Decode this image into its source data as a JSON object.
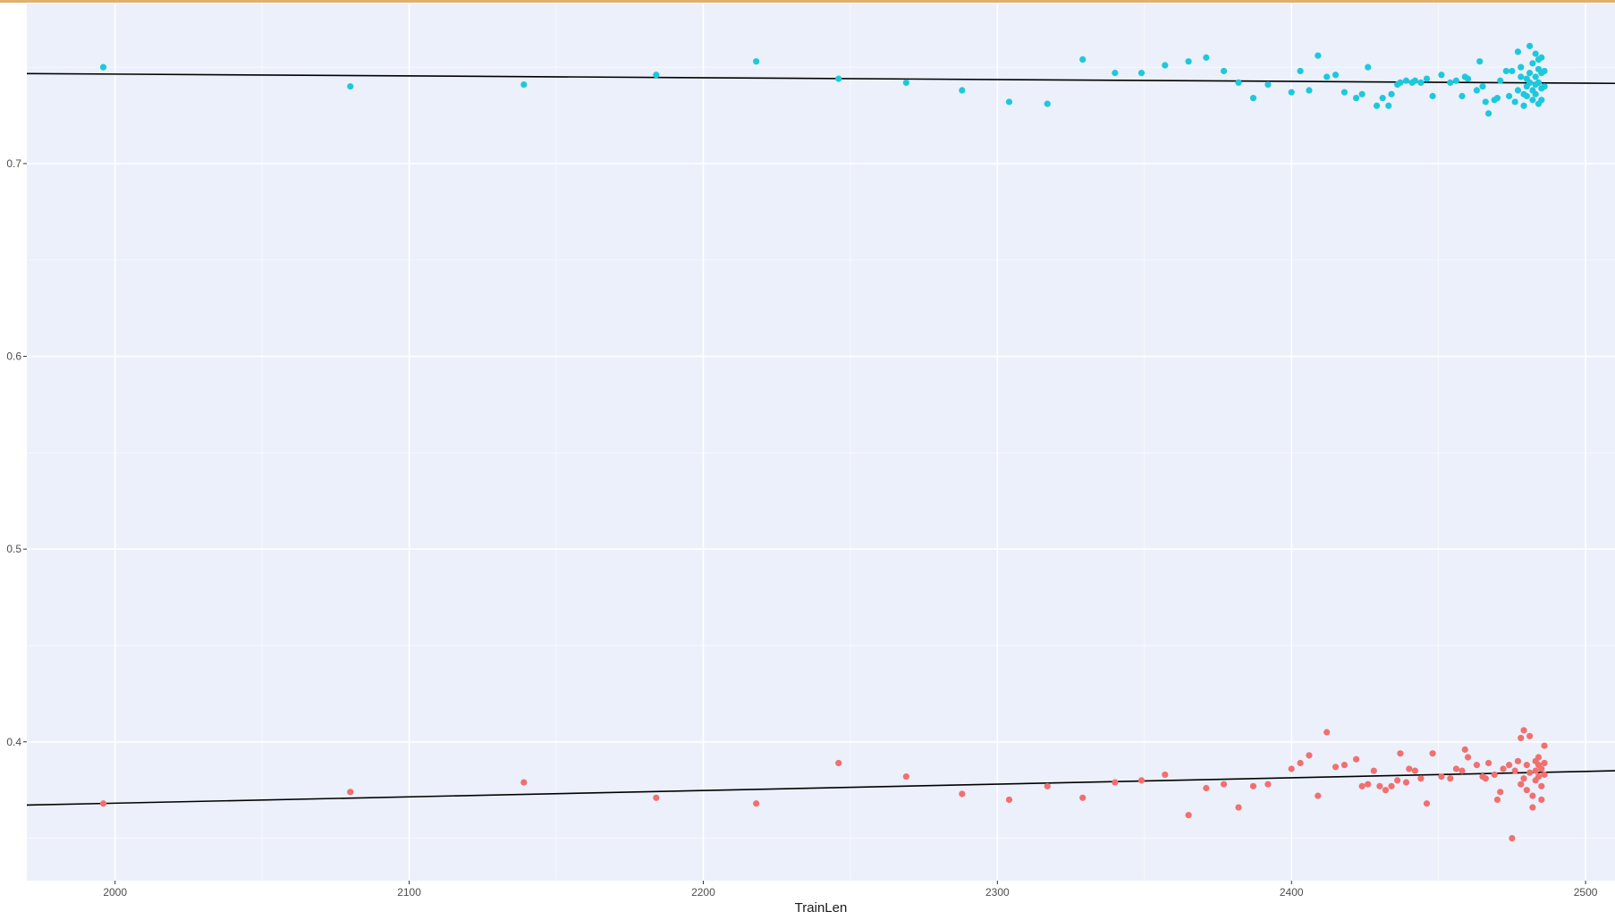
{
  "chart_data": {
    "type": "scatter",
    "title": "",
    "xlabel": "TrainLen",
    "ylabel": "",
    "xlim": [
      1970,
      2510
    ],
    "ylim": [
      0.328,
      0.783
    ],
    "x_ticks": [
      2000,
      2100,
      2200,
      2300,
      2400,
      2500
    ],
    "y_ticks": [
      0.4,
      0.5,
      0.6,
      0.7
    ],
    "grid": true,
    "legend": "none",
    "colors": {
      "background": "#ebf0fa",
      "grid": "#ffffff",
      "trend": "#000000",
      "series_upper": "#1ec8dc",
      "series_lower": "#f07070"
    },
    "series": [
      {
        "color": "#1ec8dc",
        "points": [
          [
            1996,
            0.75
          ],
          [
            2080,
            0.74
          ],
          [
            2139,
            0.741
          ],
          [
            2184,
            0.746
          ],
          [
            2218,
            0.753
          ],
          [
            2246,
            0.744
          ],
          [
            2269,
            0.742
          ],
          [
            2288,
            0.738
          ],
          [
            2304,
            0.732
          ],
          [
            2317,
            0.731
          ],
          [
            2329,
            0.754
          ],
          [
            2340,
            0.747
          ],
          [
            2349,
            0.747
          ],
          [
            2357,
            0.751
          ],
          [
            2365,
            0.753
          ],
          [
            2371,
            0.755
          ],
          [
            2377,
            0.748
          ],
          [
            2382,
            0.742
          ],
          [
            2387,
            0.734
          ],
          [
            2392,
            0.741
          ],
          [
            2400,
            0.737
          ],
          [
            2403,
            0.748
          ],
          [
            2406,
            0.738
          ],
          [
            2409,
            0.756
          ],
          [
            2412,
            0.745
          ],
          [
            2415,
            0.746
          ],
          [
            2418,
            0.737
          ],
          [
            2422,
            0.734
          ],
          [
            2424,
            0.736
          ],
          [
            2426,
            0.75
          ],
          [
            2429,
            0.73
          ],
          [
            2431,
            0.734
          ],
          [
            2433,
            0.73
          ],
          [
            2434,
            0.736
          ],
          [
            2436,
            0.741
          ],
          [
            2437,
            0.742
          ],
          [
            2439,
            0.743
          ],
          [
            2441,
            0.742
          ],
          [
            2442,
            0.743
          ],
          [
            2444,
            0.742
          ],
          [
            2446,
            0.744
          ],
          [
            2448,
            0.735
          ],
          [
            2451,
            0.746
          ],
          [
            2454,
            0.742
          ],
          [
            2456,
            0.743
          ],
          [
            2458,
            0.735
          ],
          [
            2459,
            0.745
          ],
          [
            2460,
            0.744
          ],
          [
            2463,
            0.738
          ],
          [
            2464,
            0.753
          ],
          [
            2465,
            0.74
          ],
          [
            2466,
            0.732
          ],
          [
            2467,
            0.726
          ],
          [
            2469,
            0.733
          ],
          [
            2470,
            0.734
          ],
          [
            2471,
            0.743
          ],
          [
            2473,
            0.748
          ],
          [
            2474,
            0.735
          ],
          [
            2475,
            0.748
          ],
          [
            2476,
            0.732
          ],
          [
            2477,
            0.758
          ],
          [
            2477,
            0.738
          ],
          [
            2478,
            0.745
          ],
          [
            2478,
            0.75
          ],
          [
            2479,
            0.736
          ],
          [
            2479,
            0.73
          ],
          [
            2480,
            0.744
          ],
          [
            2480,
            0.74
          ],
          [
            2480,
            0.735
          ],
          [
            2481,
            0.747
          ],
          [
            2481,
            0.761
          ],
          [
            2481,
            0.742
          ],
          [
            2482,
            0.738
          ],
          [
            2482,
            0.733
          ],
          [
            2482,
            0.752
          ],
          [
            2483,
            0.757
          ],
          [
            2483,
            0.745
          ],
          [
            2483,
            0.741
          ],
          [
            2483,
            0.736
          ],
          [
            2484,
            0.754
          ],
          [
            2484,
            0.749
          ],
          [
            2484,
            0.742
          ],
          [
            2484,
            0.731
          ],
          [
            2485,
            0.755
          ],
          [
            2485,
            0.747
          ],
          [
            2485,
            0.739
          ],
          [
            2485,
            0.733
          ],
          [
            2486,
            0.748
          ],
          [
            2486,
            0.74
          ]
        ]
      },
      {
        "color": "#f07070",
        "points": [
          [
            1996,
            0.368
          ],
          [
            2080,
            0.374
          ],
          [
            2139,
            0.379
          ],
          [
            2184,
            0.371
          ],
          [
            2218,
            0.368
          ],
          [
            2246,
            0.389
          ],
          [
            2269,
            0.382
          ],
          [
            2288,
            0.373
          ],
          [
            2304,
            0.37
          ],
          [
            2317,
            0.377
          ],
          [
            2329,
            0.371
          ],
          [
            2340,
            0.379
          ],
          [
            2349,
            0.38
          ],
          [
            2357,
            0.383
          ],
          [
            2365,
            0.362
          ],
          [
            2371,
            0.376
          ],
          [
            2377,
            0.378
          ],
          [
            2382,
            0.366
          ],
          [
            2387,
            0.377
          ],
          [
            2392,
            0.378
          ],
          [
            2400,
            0.386
          ],
          [
            2403,
            0.389
          ],
          [
            2406,
            0.393
          ],
          [
            2409,
            0.372
          ],
          [
            2412,
            0.405
          ],
          [
            2415,
            0.387
          ],
          [
            2418,
            0.388
          ],
          [
            2422,
            0.391
          ],
          [
            2424,
            0.377
          ],
          [
            2426,
            0.378
          ],
          [
            2428,
            0.385
          ],
          [
            2430,
            0.377
          ],
          [
            2432,
            0.375
          ],
          [
            2434,
            0.377
          ],
          [
            2436,
            0.38
          ],
          [
            2437,
            0.394
          ],
          [
            2439,
            0.379
          ],
          [
            2440,
            0.386
          ],
          [
            2442,
            0.385
          ],
          [
            2444,
            0.381
          ],
          [
            2446,
            0.368
          ],
          [
            2448,
            0.394
          ],
          [
            2451,
            0.382
          ],
          [
            2454,
            0.381
          ],
          [
            2456,
            0.386
          ],
          [
            2458,
            0.385
          ],
          [
            2459,
            0.396
          ],
          [
            2460,
            0.392
          ],
          [
            2463,
            0.388
          ],
          [
            2465,
            0.382
          ],
          [
            2466,
            0.381
          ],
          [
            2467,
            0.389
          ],
          [
            2469,
            0.383
          ],
          [
            2470,
            0.37
          ],
          [
            2471,
            0.374
          ],
          [
            2472,
            0.386
          ],
          [
            2474,
            0.388
          ],
          [
            2475,
            0.35
          ],
          [
            2476,
            0.385
          ],
          [
            2477,
            0.39
          ],
          [
            2478,
            0.402
          ],
          [
            2478,
            0.378
          ],
          [
            2479,
            0.406
          ],
          [
            2479,
            0.381
          ],
          [
            2480,
            0.388
          ],
          [
            2480,
            0.375
          ],
          [
            2481,
            0.403
          ],
          [
            2481,
            0.384
          ],
          [
            2482,
            0.372
          ],
          [
            2482,
            0.366
          ],
          [
            2483,
            0.39
          ],
          [
            2483,
            0.385
          ],
          [
            2483,
            0.38
          ],
          [
            2484,
            0.392
          ],
          [
            2484,
            0.388
          ],
          [
            2484,
            0.382
          ],
          [
            2485,
            0.386
          ],
          [
            2485,
            0.377
          ],
          [
            2485,
            0.37
          ],
          [
            2486,
            0.398
          ],
          [
            2486,
            0.389
          ],
          [
            2486,
            0.383
          ]
        ]
      }
    ],
    "trend_lines": [
      {
        "color": "#000000",
        "x": [
          1970,
          2510
        ],
        "y": [
          0.7467,
          0.7416
        ]
      },
      {
        "color": "#000000",
        "x": [
          1970,
          2510
        ],
        "y": [
          0.3672,
          0.385
        ]
      }
    ]
  }
}
